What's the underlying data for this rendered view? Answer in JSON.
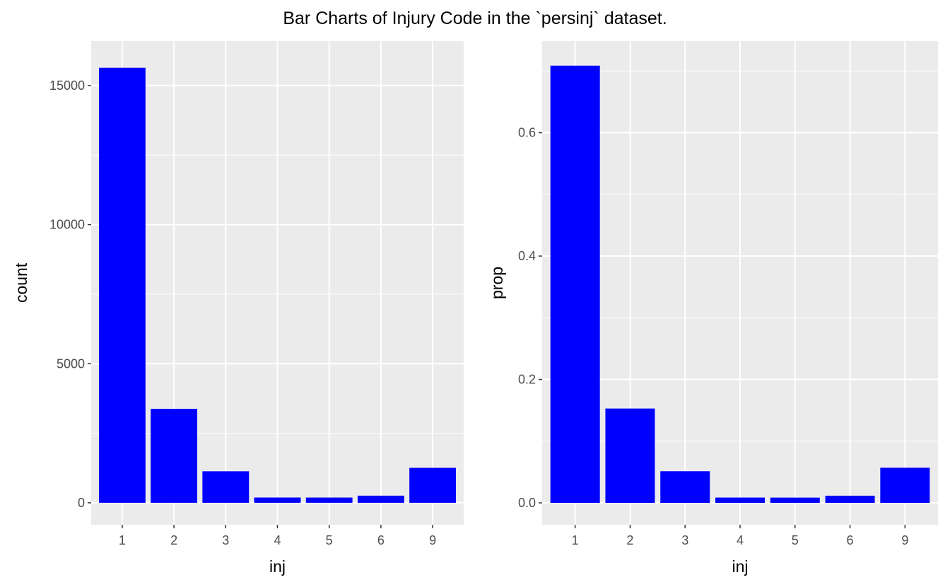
{
  "title": "Bar Charts of Injury Code in the `persinj` dataset.",
  "colors": {
    "bar": "#0000ff",
    "panel": "#ebebeb",
    "grid": "#ffffff",
    "tick_text": "#4d4d4d"
  },
  "chart_data": [
    {
      "type": "bar",
      "xlabel": "inj",
      "ylabel": "count",
      "categories": [
        "1",
        "2",
        "3",
        "4",
        "5",
        "6",
        "9"
      ],
      "values": [
        15640,
        3376,
        1133,
        189,
        188,
        256,
        1256
      ],
      "ylim": [
        -790,
        16600
      ],
      "yticks": [
        0,
        5000,
        10000,
        15000
      ],
      "ytick_labels": [
        "0",
        "5000",
        "10000",
        "15000"
      ],
      "grid": true
    },
    {
      "type": "bar",
      "xlabel": "inj",
      "ylabel": "prop",
      "categories": [
        "1",
        "2",
        "3",
        "4",
        "5",
        "6",
        "9"
      ],
      "values": [
        0.7086,
        0.1529,
        0.0513,
        0.0086,
        0.0085,
        0.0116,
        0.0569
      ],
      "ylim": [
        -0.0355,
        0.7485
      ],
      "yticks": [
        0.0,
        0.2,
        0.4,
        0.6
      ],
      "ytick_labels": [
        "0.0",
        "0.2",
        "0.4",
        "0.6"
      ],
      "grid": true
    }
  ]
}
